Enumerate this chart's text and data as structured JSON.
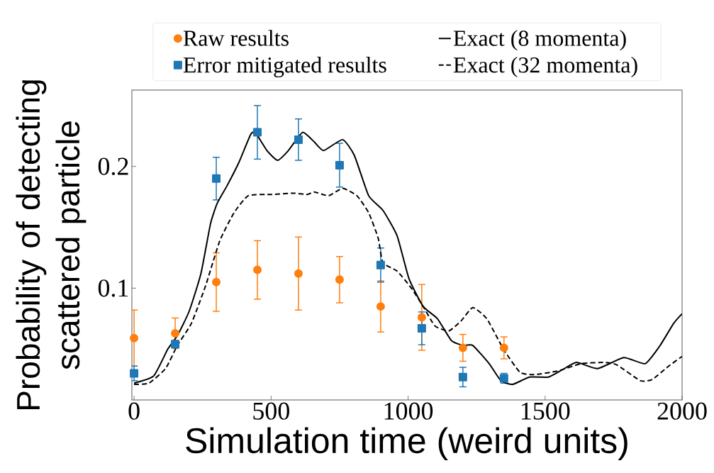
{
  "chart_data": {
    "type": "line",
    "xlabel": "Simulation time (weird units)",
    "ylabel": "Probability of detecting scattered particle",
    "xlim": [
      -8,
      2000
    ],
    "ylim": [
      0.0082,
      0.2627
    ],
    "xticks": [
      0,
      500,
      1000,
      1500,
      2000
    ],
    "yticks": [
      0.1,
      0.2
    ],
    "legend": "top",
    "series": [
      {
        "name": "Raw results",
        "type": "scatter",
        "color": "#ff7f0e",
        "marker": "circle",
        "x": [
          0,
          150,
          300,
          450,
          600,
          750,
          900,
          1050,
          1200,
          1350
        ],
        "values": [
          0.059,
          0.063,
          0.105,
          0.115,
          0.112,
          0.107,
          0.085,
          0.076,
          0.051,
          0.051
        ],
        "errors": [
          0.023,
          0.0125,
          0.024,
          0.024,
          0.03,
          0.019,
          0.021,
          0.027,
          0.011,
          0.009
        ]
      },
      {
        "name": "Error mitigated results",
        "type": "scatter",
        "color": "#1f77b4",
        "marker": "square",
        "x": [
          0,
          150,
          300,
          450,
          600,
          750,
          900,
          1050,
          1200,
          1350
        ],
        "values": [
          0.03,
          0.054,
          0.19,
          0.228,
          0.222,
          0.201,
          0.119,
          0.067,
          0.027,
          0.026
        ],
        "errors": [
          0.006,
          0.003,
          0.0175,
          0.022,
          0.017,
          0.018,
          0.014,
          0.0135,
          0.008,
          0.004
        ]
      },
      {
        "name": "Exact (8 momenta)",
        "type": "line",
        "color": "#000000",
        "marker": "none",
        "line_style": "solid",
        "x": [
          0,
          72,
          123,
          158,
          201,
          244,
          279,
          304,
          339,
          382,
          425,
          442,
          485,
          524,
          563,
          615,
          658,
          692,
          761,
          804,
          856,
          908,
          960,
          1003,
          1055,
          1107,
          1158,
          1201,
          1236,
          1296,
          1339,
          1382,
          1443,
          1512,
          1563,
          1615,
          1692,
          1787,
          1865,
          1917,
          1969,
          2000
        ],
        "values": [
          0.022,
          0.028,
          0.05,
          0.061,
          0.081,
          0.112,
          0.153,
          0.17,
          0.184,
          0.203,
          0.226,
          0.228,
          0.213,
          0.205,
          0.213,
          0.228,
          0.22,
          0.213,
          0.222,
          0.209,
          0.176,
          0.164,
          0.143,
          0.108,
          0.085,
          0.075,
          0.057,
          0.053,
          0.053,
          0.038,
          0.024,
          0.021,
          0.027,
          0.027,
          0.033,
          0.039,
          0.034,
          0.043,
          0.038,
          0.052,
          0.071,
          0.079
        ]
      },
      {
        "name": "Exact (32 momenta)",
        "type": "line",
        "color": "#000000",
        "marker": "none",
        "line_style": "dashed",
        "x": [
          0,
          54,
          115,
          158,
          209,
          261,
          313,
          365,
          417,
          503,
          581,
          632,
          658,
          710,
          761,
          813,
          856,
          891,
          908,
          960,
          1012,
          1055,
          1098,
          1149,
          1193,
          1236,
          1287,
          1348,
          1408,
          1460,
          1546,
          1632,
          1719,
          1762,
          1848,
          1891,
          1951,
          2000
        ],
        "values": [
          0.021,
          0.022,
          0.034,
          0.053,
          0.071,
          0.102,
          0.139,
          0.162,
          0.176,
          0.177,
          0.178,
          0.177,
          0.179,
          0.176,
          0.182,
          0.176,
          0.162,
          0.141,
          0.121,
          0.114,
          0.1,
          0.085,
          0.069,
          0.065,
          0.073,
          0.084,
          0.075,
          0.05,
          0.031,
          0.029,
          0.032,
          0.038,
          0.039,
          0.037,
          0.024,
          0.025,
          0.036,
          0.044
        ]
      }
    ]
  }
}
